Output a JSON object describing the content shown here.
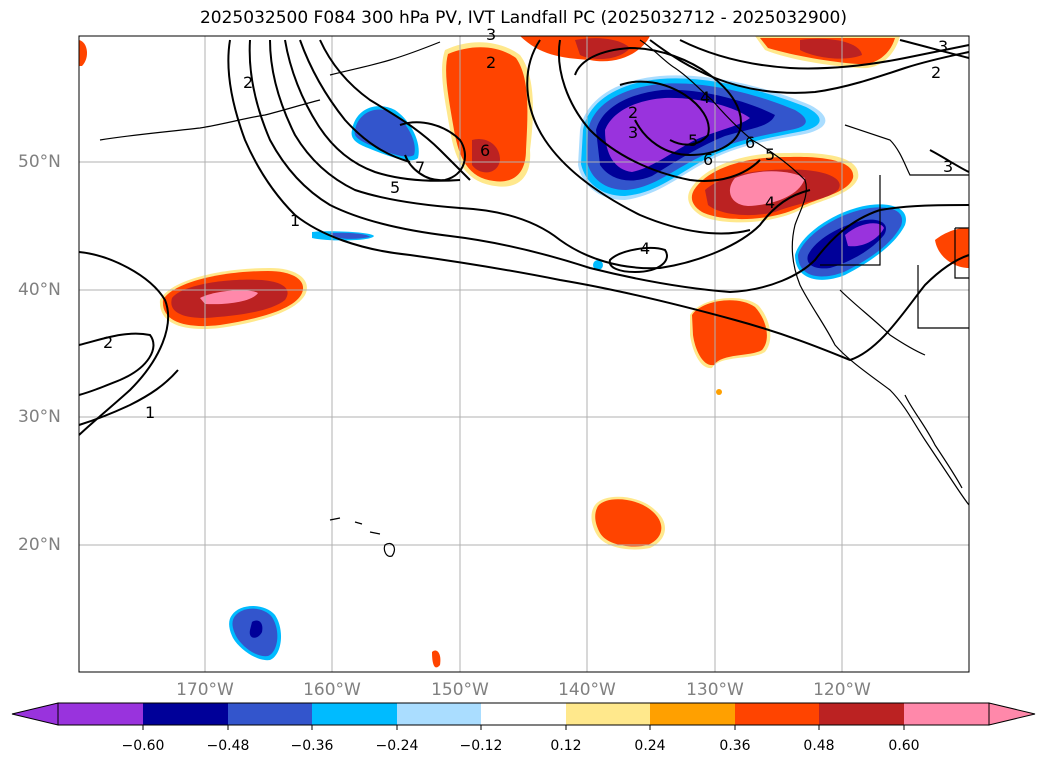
{
  "title": "2025032500 F084 300 hPa PV, IVT Landfall PC (2025032712 - 2025032900)",
  "lat_labels": [
    "50°N",
    "40°N",
    "30°N",
    "20°N"
  ],
  "lon_labels": [
    "170°W",
    "160°W",
    "150°W",
    "140°W",
    "130°W",
    "120°W"
  ],
  "colorbar": {
    "ticks": [
      "−0.60",
      "−0.48",
      "−0.36",
      "−0.24",
      "−0.12",
      "0.12",
      "0.24",
      "0.36",
      "0.48",
      "0.60"
    ],
    "colors": [
      "#9933dd",
      "#000099",
      "#3355cc",
      "#00bbff",
      "#aaddff",
      "#ffffff",
      "#ffe88c",
      "#ffa000",
      "#ff4400",
      "#bb2222",
      "#ff88aa"
    ],
    "extend": "both"
  },
  "contour_labels": [
    "1",
    "2",
    "2",
    "1",
    "2",
    "3",
    "4",
    "5",
    "6",
    "7",
    "5",
    "6",
    "2",
    "3",
    "5",
    "6",
    "4",
    "4",
    "2",
    "3",
    "3"
  ],
  "colors": {
    "pv_contour": "#000000",
    "grid": "#b0b0b0",
    "coast": "#000000"
  }
}
